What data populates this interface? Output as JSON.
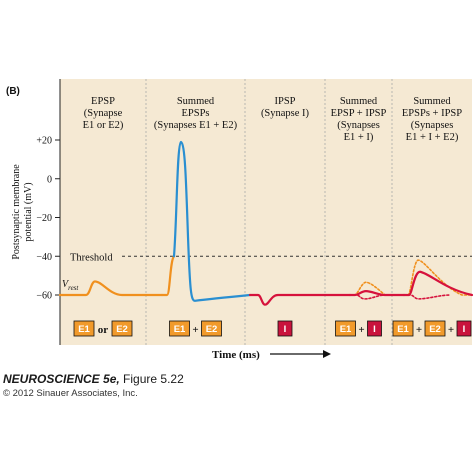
{
  "panel_label": "(B)",
  "colors": {
    "panel_bg": "#f5e9d3",
    "epsp": "#f0901e",
    "summed": "#2a8fd1",
    "ipsp": "#d6123c",
    "threshold": "#333333",
    "box_e": "#f19a2b",
    "box_i": "#c9133d"
  },
  "chart_data": {
    "type": "line",
    "ylabel": "Postsynaptic membrane potential (mV)",
    "xlabel": "Time (ms)",
    "yticks": [
      20,
      0,
      -20,
      -40,
      -60
    ],
    "ylim": [
      -64,
      28
    ],
    "threshold_label": "Threshold",
    "threshold_value": -40,
    "vrest_label": "V",
    "vrest_sub": "rest",
    "vrest_value": -60,
    "columns": [
      {
        "title_lines": [
          "EPSP",
          "(Synapse",
          "E1 or E2)"
        ],
        "stim": [
          "E1",
          "or",
          "E2"
        ]
      },
      {
        "title_lines": [
          "Summed",
          "EPSPs",
          "(Synapses E1 + E2)"
        ],
        "stim": [
          "E1",
          "+",
          "E2"
        ]
      },
      {
        "title_lines": [
          "IPSP",
          "(Synapse I)"
        ],
        "stim": [
          "I"
        ]
      },
      {
        "title_lines": [
          "Summed",
          "EPSP + IPSP",
          "(Synapses",
          "E1 + I)"
        ],
        "stim": [
          "E1",
          "+",
          "I"
        ]
      },
      {
        "title_lines": [
          "Summed",
          "EPSPs + IPSP",
          "(Synapses",
          "E1 + I + E2)"
        ],
        "stim": [
          "E1",
          "+",
          "E2",
          "+",
          "I"
        ]
      }
    ]
  },
  "caption": {
    "title": "NEUROSCIENCE 5e,",
    "figure": "Figure 5.22",
    "copyright": "© 2012 Sinauer Associates, Inc."
  }
}
